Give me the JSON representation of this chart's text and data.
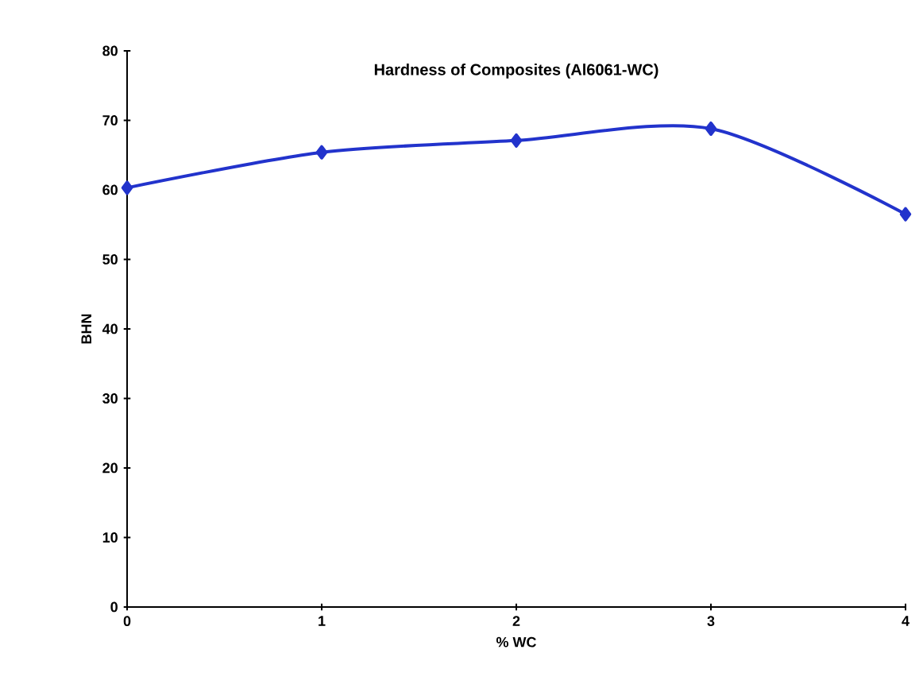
{
  "chart_data": {
    "type": "line",
    "title": "Hardness of Composites (Al6061-WC)",
    "xlabel": "% WC",
    "ylabel": "BHN",
    "x": [
      0,
      1,
      2,
      3,
      4
    ],
    "series": [
      {
        "color": "#2233cc",
        "values": [
          60.3,
          65.4,
          67.1,
          68.8,
          56.5
        ]
      }
    ],
    "xlim": [
      0,
      4
    ],
    "xticks": [
      0,
      1,
      2,
      3,
      4
    ],
    "ylim": [
      0,
      80
    ],
    "yticks": [
      0,
      10,
      20,
      30,
      40,
      50,
      60,
      70,
      80
    ],
    "marker": "diamond",
    "line_style": "solid"
  }
}
